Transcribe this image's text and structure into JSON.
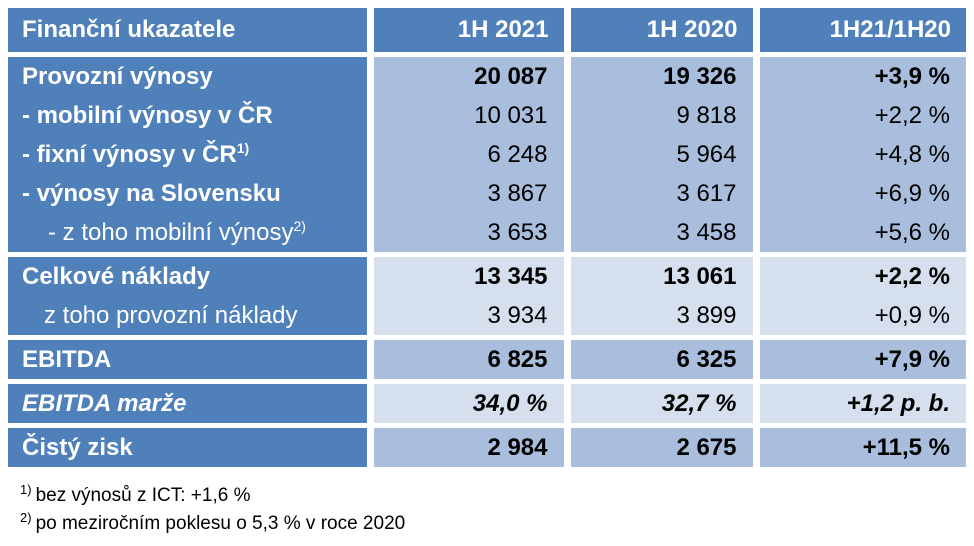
{
  "table": {
    "columns": {
      "indicator": "Finanční ukazatele",
      "h1_2021": "1H 2021",
      "h1_2020": "1H 2020",
      "change": "1H21/1H20"
    },
    "rows": [
      {
        "label": "Provozní výnosy",
        "sup": "",
        "v2021": "20 087",
        "v2020": "19 326",
        "change": "+3,9 %"
      },
      {
        "label": "- mobilní výnosy v ČR",
        "sup": "",
        "v2021": "10 031",
        "v2020": "9 818",
        "change": "+2,2 %"
      },
      {
        "label": "- fixní výnosy v ČR",
        "sup": "1)",
        "v2021": "6 248",
        "v2020": "5 964",
        "change": "+4,8 %"
      },
      {
        "label": "- výnosy na Slovensku",
        "sup": "",
        "v2021": "3 867",
        "v2020": "3 617",
        "change": "+6,9 %"
      },
      {
        "label": "- z toho mobilní výnosy",
        "sup": "2)",
        "v2021": "3 653",
        "v2020": "3 458",
        "change": "+5,6 %"
      },
      {
        "label": "Celkové náklady",
        "sup": "",
        "v2021": "13 345",
        "v2020": "13 061",
        "change": "+2,2 %"
      },
      {
        "label": "z toho provozní náklady",
        "sup": "",
        "v2021": "3 934",
        "v2020": "3 899",
        "change": "+0,9 %"
      },
      {
        "label": "EBITDA",
        "sup": "",
        "v2021": "6 825",
        "v2020": "6 325",
        "change": "+7,9 %"
      },
      {
        "label": "EBITDA marže",
        "sup": "",
        "v2021": "34,0 %",
        "v2020": "32,7 %",
        "change": "+1,2 p. b."
      },
      {
        "label": "Čistý zisk",
        "sup": "",
        "v2021": "2 984",
        "v2020": "2 675",
        "change": "+11,5 %"
      }
    ]
  },
  "footnotes": [
    {
      "marker": "1)",
      "text": "bez výnosů z ICT: +1,6 %"
    },
    {
      "marker": "2)",
      "text": "po meziročním poklesu o 5,3 % v roce 2020"
    }
  ],
  "colors": {
    "header_blue": "#4f80ba",
    "band_medium": "#a9bedd",
    "band_light": "#d5dfee",
    "text_on_blue": "#ffffff",
    "text_data": "#000000"
  }
}
